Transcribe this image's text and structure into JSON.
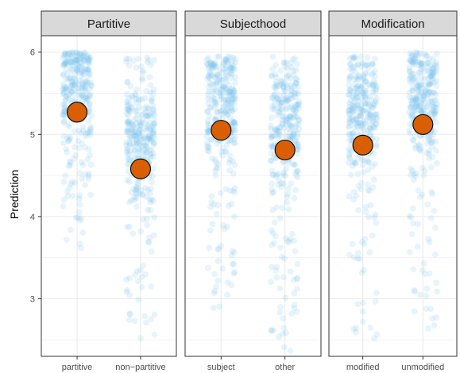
{
  "chart_data": {
    "type": "scatter",
    "ylabel": "Prediction",
    "ylim": [
      2.3,
      6.2
    ],
    "y_ticks": [
      3,
      4,
      5,
      6
    ],
    "grid": true,
    "colors": {
      "points": "#7cc3ec",
      "mean": "#d95f02",
      "strip_bg": "#d9d9d9",
      "panel_border": "#333333",
      "grid": "#ebebeb"
    },
    "facets": [
      {
        "strip": "Partitive",
        "categories": [
          "partitive",
          "non−partitive"
        ],
        "means": [
          5.27,
          4.58
        ],
        "point_ranges": [
          [
            3.57,
            6.0
          ],
          [
            2.3,
            5.95
          ]
        ]
      },
      {
        "strip": "Subjecthood",
        "categories": [
          "subject",
          "other"
        ],
        "means": [
          5.05,
          4.81
        ],
        "point_ranges": [
          [
            2.85,
            5.95
          ],
          [
            2.32,
            6.0
          ]
        ]
      },
      {
        "strip": "Modification",
        "categories": [
          "modified",
          "unmodified"
        ],
        "means": [
          4.87,
          5.12
        ],
        "point_ranges": [
          [
            2.32,
            5.95
          ],
          [
            2.32,
            6.0
          ]
        ]
      }
    ]
  }
}
